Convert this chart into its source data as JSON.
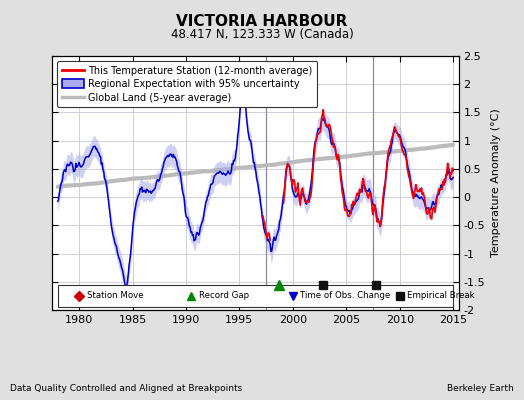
{
  "title": "VICTORIA HARBOUR",
  "subtitle": "48.417 N, 123.333 W (Canada)",
  "ylabel": "Temperature Anomaly (°C)",
  "xlabel_left": "Data Quality Controlled and Aligned at Breakpoints",
  "xlabel_right": "Berkeley Earth",
  "xlim": [
    1977.5,
    2015.5
  ],
  "ylim": [
    -2.0,
    2.5
  ],
  "yticks": [
    -2,
    -1.5,
    -1,
    -0.5,
    0,
    0.5,
    1,
    1.5,
    2,
    2.5
  ],
  "xticks": [
    1980,
    1985,
    1990,
    1995,
    2000,
    2005,
    2010,
    2015
  ],
  "bg_color": "#e0e0e0",
  "plot_bg_color": "#ffffff",
  "grid_color": "#c8c8d8",
  "red_color": "#ee0000",
  "blue_color": "#0000cc",
  "blue_fill_color": "#aaaaee",
  "gray_color": "#bbbbbb",
  "marker_record_gap_x": 1998.7,
  "marker_empirical1_x": 2002.8,
  "marker_empirical2_x": 2007.8,
  "marker_y": -1.55,
  "vertical_line1": 1997.5,
  "vertical_line2": 2007.5
}
